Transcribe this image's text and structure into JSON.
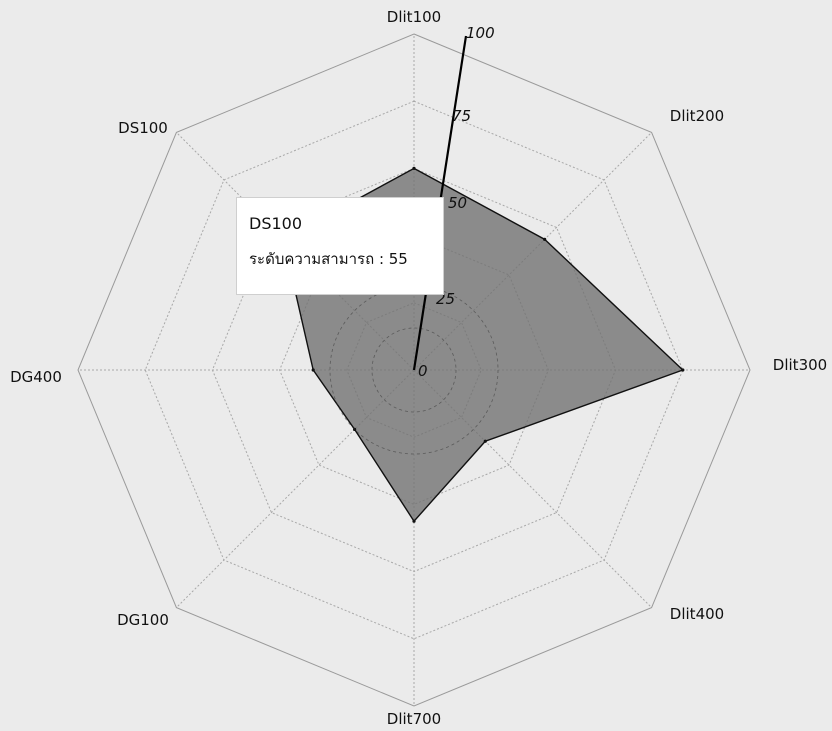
{
  "chart_data": {
    "type": "radar",
    "title": "",
    "axes": [
      "Dlit100",
      "Dlit200",
      "Dlit300",
      "Dlit400",
      "Dlit700",
      "DG100",
      "DG400",
      "DS100"
    ],
    "series": [
      {
        "values": [
          60,
          55,
          80,
          30,
          45,
          25,
          30,
          55
        ]
      }
    ],
    "range": [
      0,
      100
    ],
    "ticks": [
      0,
      25,
      50,
      75,
      100
    ],
    "tick_labels": [
      "0",
      "25",
      "50",
      "75",
      "100"
    ],
    "grid": true,
    "fill_color": "#707070",
    "stroke_color": "#111111"
  },
  "tooltip": {
    "title": "DS100",
    "label": "ระดับความสามารถ",
    "separator": " : ",
    "value": "55"
  }
}
